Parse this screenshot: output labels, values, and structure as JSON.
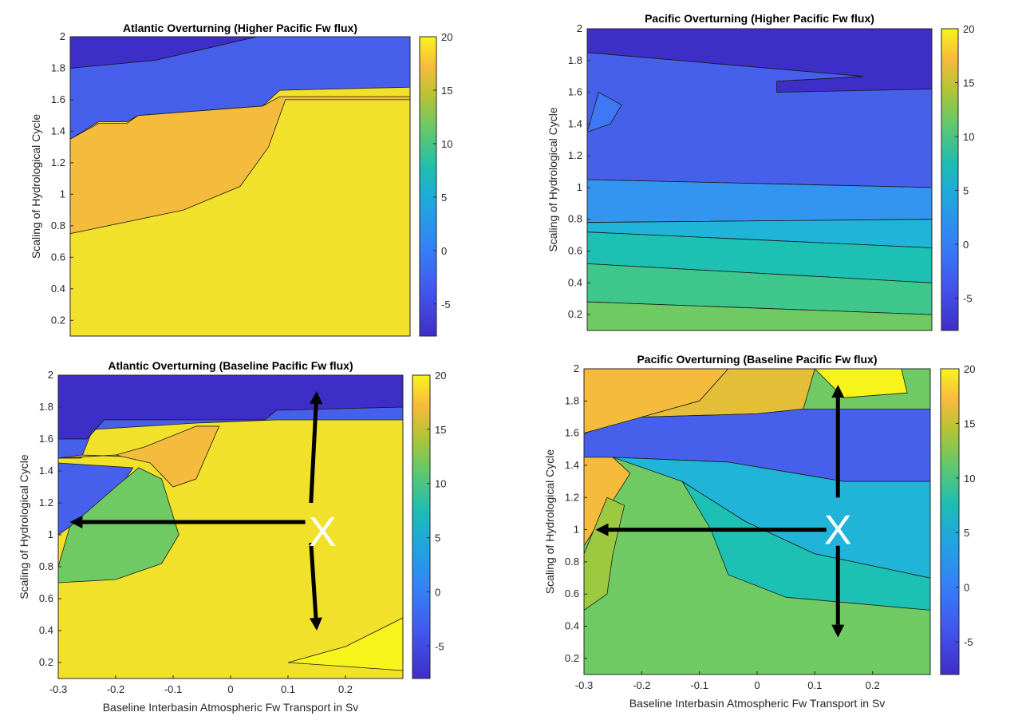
{
  "chart_data": [
    {
      "type": "contour",
      "title": "Atlantic Overturning (Higher Pacific Fw flux)",
      "xlabel": "",
      "ylabel": "Scaling of Hydrological Cycle",
      "xlim": [
        -0.3,
        0.3
      ],
      "ylim": [
        0.1,
        2.0
      ],
      "x_ticks": [],
      "y_ticks": [
        "0.2",
        "0.4",
        "0.6",
        "0.8",
        "1",
        "1.2",
        "1.4",
        "1.6",
        "1.8",
        "2"
      ],
      "colorbar": {
        "min": -8,
        "max": 20,
        "ticks": [
          "-5",
          "0",
          "5",
          "10",
          "15",
          "20"
        ]
      },
      "regions": [
        {
          "level": -7.5,
          "color": "#3e2ec8",
          "outline": [
            [
              -0.3,
              2.0
            ],
            [
              0.03,
              2.0
            ],
            [
              -0.15,
              1.85
            ],
            [
              -0.3,
              1.8
            ]
          ]
        },
        {
          "level": -5,
          "color": "#4760ec",
          "outline": [
            [
              -0.3,
              1.8
            ],
            [
              -0.15,
              1.85
            ],
            [
              0.03,
              2.0
            ],
            [
              0.3,
              2.0
            ],
            [
              0.3,
              1.68
            ],
            [
              0.07,
              1.66
            ],
            [
              0.04,
              1.56
            ],
            [
              -0.18,
              1.5
            ],
            [
              -0.2,
              1.46
            ],
            [
              -0.25,
              1.46
            ],
            [
              -0.3,
              1.35
            ]
          ]
        },
        {
          "level": 17,
          "color": "#f5bb3c",
          "outline": [
            [
              -0.3,
              1.35
            ],
            [
              -0.25,
              1.45
            ],
            [
              -0.2,
              1.45
            ],
            [
              -0.18,
              1.5
            ],
            [
              0.04,
              1.56
            ],
            [
              0.07,
              1.62
            ],
            [
              0.3,
              1.62
            ],
            [
              0.3,
              0.1
            ],
            [
              -0.3,
              0.1
            ]
          ]
        },
        {
          "level": 19.5,
          "color": "#f2e12a",
          "outline": [
            [
              -0.3,
              0.75
            ],
            [
              -0.1,
              0.9
            ],
            [
              0.0,
              1.05
            ],
            [
              0.05,
              1.3
            ],
            [
              0.08,
              1.6
            ],
            [
              0.3,
              1.6
            ],
            [
              0.3,
              0.1
            ],
            [
              -0.3,
              0.1
            ]
          ]
        }
      ]
    },
    {
      "type": "contour",
      "title": "Pacific Overturning (Higher Pacific Fw flux)",
      "xlabel": "",
      "ylabel": "Scaling of Hydrological Cycle",
      "xlim": [
        -0.3,
        0.3
      ],
      "ylim": [
        0.1,
        2.0
      ],
      "x_ticks": [],
      "y_ticks": [
        "0.2",
        "0.4",
        "0.6",
        "0.8",
        "1",
        "1.2",
        "1.4",
        "1.6",
        "1.8",
        "2"
      ],
      "colorbar": {
        "min": -8,
        "max": 20,
        "ticks": [
          "-5",
          "0",
          "5",
          "10",
          "15",
          "20"
        ]
      },
      "regions": [
        {
          "level": -7.5,
          "color": "#3e2ec8",
          "outline": [
            [
              -0.3,
              2.0
            ],
            [
              0.3,
              2.0
            ],
            [
              0.3,
              1.62
            ],
            [
              0.12,
              1.6
            ],
            [
              0.03,
              1.6
            ],
            [
              0.03,
              1.67
            ],
            [
              0.18,
              1.7
            ],
            [
              -0.3,
              1.85
            ]
          ]
        },
        {
          "level": -5,
          "color": "#4760ec",
          "outline": [
            [
              -0.3,
              1.85
            ],
            [
              0.18,
              1.7
            ],
            [
              0.03,
              1.67
            ],
            [
              0.03,
              1.6
            ],
            [
              0.3,
              1.62
            ],
            [
              0.3,
              1.0
            ],
            [
              -0.3,
              1.05
            ]
          ]
        },
        {
          "level": -3,
          "color": "#3f78f5",
          "outline": [
            [
              -0.3,
              1.35
            ],
            [
              -0.28,
              1.6
            ],
            [
              -0.24,
              1.52
            ],
            [
              -0.26,
              1.4
            ]
          ]
        },
        {
          "level": -1,
          "color": "#3495f0",
          "outline": [
            [
              -0.3,
              1.05
            ],
            [
              0.3,
              1.0
            ],
            [
              0.3,
              0.8
            ],
            [
              -0.3,
              0.78
            ]
          ]
        },
        {
          "level": 3,
          "color": "#20b4d8",
          "outline": [
            [
              -0.3,
              0.78
            ],
            [
              0.3,
              0.8
            ],
            [
              0.3,
              0.62
            ],
            [
              -0.3,
              0.72
            ]
          ]
        },
        {
          "level": 7,
          "color": "#1cc1b3",
          "outline": [
            [
              -0.3,
              0.72
            ],
            [
              0.3,
              0.62
            ],
            [
              0.3,
              0.4
            ],
            [
              -0.3,
              0.52
            ]
          ]
        },
        {
          "level": 9,
          "color": "#3ec68b",
          "outline": [
            [
              -0.3,
              0.52
            ],
            [
              0.3,
              0.4
            ],
            [
              0.3,
              0.2
            ],
            [
              -0.3,
              0.28
            ]
          ]
        },
        {
          "level": 11,
          "color": "#6fca63",
          "outline": [
            [
              -0.3,
              0.28
            ],
            [
              0.3,
              0.2
            ],
            [
              0.3,
              0.1
            ],
            [
              -0.3,
              0.1
            ]
          ]
        }
      ]
    },
    {
      "type": "contour",
      "title": "Atlantic Overturning (Baseline Pacific Fw flux)",
      "xlabel": "Baseline Interbasin Atmospheric Fw Transport in Sv",
      "ylabel": "Scaling of Hydrological Cycle",
      "xlim": [
        -0.3,
        0.3
      ],
      "ylim": [
        0.1,
        2.0
      ],
      "x_ticks": [
        -0.3,
        -0.2,
        -0.1,
        0,
        0.1,
        0.2
      ],
      "x_tick_labels": [
        "-0.3",
        "-0.2",
        "-0.1",
        "0",
        "0.1",
        "0.2"
      ],
      "y_ticks": [
        "0.2",
        "0.4",
        "0.6",
        "0.8",
        "1",
        "1.2",
        "1.4",
        "1.6",
        "1.8",
        "2"
      ],
      "colorbar": {
        "min": -8,
        "max": 20,
        "ticks": [
          "-5",
          "0",
          "5",
          "10",
          "15",
          "20"
        ]
      },
      "marker": {
        "text": "X",
        "x": 0.16,
        "y": 1.02
      },
      "arrows": [
        {
          "from": [
            0.14,
            1.2
          ],
          "to": [
            0.15,
            1.9
          ]
        },
        {
          "from": [
            0.14,
            0.95
          ],
          "to": [
            0.15,
            0.4
          ]
        },
        {
          "from": [
            0.13,
            1.08
          ],
          "to": [
            -0.28,
            1.08
          ]
        }
      ],
      "regions": [
        {
          "level": 19.5,
          "color": "#f2e12a",
          "outline": [
            [
              -0.3,
              2.0
            ],
            [
              0.3,
              2.0
            ],
            [
              0.3,
              0.1
            ],
            [
              -0.3,
              0.1
            ]
          ]
        },
        {
          "level": -7.5,
          "color": "#3e2ec8",
          "outline": [
            [
              -0.3,
              2.0
            ],
            [
              0.3,
              2.0
            ],
            [
              0.3,
              1.8
            ],
            [
              0.08,
              1.78
            ],
            [
              0.06,
              1.72
            ],
            [
              -0.22,
              1.72
            ],
            [
              -0.25,
              1.6
            ],
            [
              -0.3,
              1.6
            ]
          ]
        },
        {
          "level": -5,
          "color": "#4760ec",
          "outline": [
            [
              -0.3,
              1.6
            ],
            [
              -0.25,
              1.6
            ],
            [
              -0.22,
              1.72
            ],
            [
              0.06,
              1.72
            ],
            [
              0.08,
              1.78
            ],
            [
              0.3,
              1.8
            ],
            [
              0.3,
              1.72
            ],
            [
              0.08,
              1.72
            ],
            [
              -0.06,
              1.7
            ],
            [
              -0.24,
              1.66
            ],
            [
              -0.26,
              1.48
            ],
            [
              -0.3,
              1.48
            ]
          ]
        },
        {
          "level": 17,
          "color": "#f5bb3c",
          "outline": [
            [
              -0.3,
              1.48
            ],
            [
              -0.26,
              1.5
            ],
            [
              -0.1,
              1.48
            ],
            [
              -0.02,
              1.68
            ],
            [
              -0.06,
              1.68
            ],
            [
              -0.09,
              1.5
            ],
            [
              -0.2,
              1.5
            ],
            [
              -0.3,
              1.48
            ]
          ]
        },
        {
          "level": 17.5,
          "color": "#f5bb3c",
          "outline": [
            [
              -0.2,
              1.5
            ],
            [
              -0.15,
              1.55
            ],
            [
              -0.06,
              1.68
            ],
            [
              -0.02,
              1.68
            ],
            [
              -0.06,
              1.35
            ],
            [
              -0.1,
              1.3
            ],
            [
              -0.14,
              1.45
            ]
          ]
        },
        {
          "level": -5,
          "color": "#4760ec",
          "outline": [
            [
              -0.3,
              1.45
            ],
            [
              -0.17,
              1.42
            ],
            [
              -0.2,
              1.25
            ],
            [
              -0.3,
              1.0
            ]
          ]
        },
        {
          "level": 10,
          "color": "#6fca63",
          "outline": [
            [
              -0.3,
              0.8
            ],
            [
              -0.28,
              1.05
            ],
            [
              -0.2,
              1.3
            ],
            [
              -0.16,
              1.42
            ],
            [
              -0.12,
              1.35
            ],
            [
              -0.09,
              1.0
            ],
            [
              -0.12,
              0.82
            ],
            [
              -0.2,
              0.72
            ],
            [
              -0.3,
              0.7
            ]
          ]
        },
        {
          "level": 20,
          "color": "#f7f41c",
          "outline": [
            [
              0.3,
              0.48
            ],
            [
              0.3,
              0.15
            ],
            [
              0.1,
              0.2
            ],
            [
              0.2,
              0.3
            ]
          ]
        }
      ]
    },
    {
      "type": "contour",
      "title": "Pacific Overturning (Baseline Pacific Fw flux)",
      "xlabel": "Baseline Interbasin Atmospheric Fw Transport in Sv",
      "ylabel": "Scaling of Hydrological Cycle",
      "xlim": [
        -0.3,
        0.3
      ],
      "ylim": [
        0.1,
        2.0
      ],
      "x_ticks": [
        -0.3,
        -0.2,
        -0.1,
        0,
        0.1,
        0.2
      ],
      "x_tick_labels": [
        "-0.3",
        "-0.2",
        "-0.1",
        "0",
        "0.1",
        "0.2"
      ],
      "y_ticks": [
        "0.2",
        "0.4",
        "0.6",
        "0.8",
        "1",
        "1.2",
        "1.4",
        "1.6",
        "1.8",
        "2"
      ],
      "colorbar": {
        "min": -8,
        "max": 20,
        "ticks": [
          "-5",
          "0",
          "5",
          "10",
          "15",
          "20"
        ]
      },
      "marker": {
        "text": "X",
        "x": 0.14,
        "y": 1.0
      },
      "arrows": [
        {
          "from": [
            0.14,
            1.2
          ],
          "to": [
            0.14,
            1.9
          ]
        },
        {
          "from": [
            0.14,
            0.9
          ],
          "to": [
            0.14,
            0.33
          ]
        },
        {
          "from": [
            0.12,
            1.0
          ],
          "to": [
            -0.28,
            1.0
          ]
        }
      ],
      "regions": [
        {
          "level": 10,
          "color": "#6fca63",
          "outline": [
            [
              -0.3,
              2.0
            ],
            [
              0.3,
              2.0
            ],
            [
              0.3,
              0.1
            ],
            [
              -0.3,
              0.1
            ]
          ]
        },
        {
          "level": 16,
          "color": "#f5bb3c",
          "outline": [
            [
              -0.3,
              2.0
            ],
            [
              -0.05,
              2.0
            ],
            [
              -0.1,
              1.8
            ],
            [
              -0.2,
              1.7
            ],
            [
              -0.25,
              1.6
            ],
            [
              -0.3,
              1.6
            ]
          ]
        },
        {
          "level": 14,
          "color": "#e3be36",
          "outline": [
            [
              -0.05,
              2.0
            ],
            [
              0.1,
              2.0
            ],
            [
              0.08,
              1.75
            ],
            [
              0.0,
              1.72
            ],
            [
              -0.2,
              1.7
            ],
            [
              -0.1,
              1.8
            ]
          ]
        },
        {
          "level": 20,
          "color": "#f7f41c",
          "outline": [
            [
              0.1,
              2.0
            ],
            [
              0.25,
              2.0
            ],
            [
              0.26,
              1.85
            ],
            [
              0.15,
              1.82
            ]
          ]
        },
        {
          "level": -5,
          "color": "#4760ec",
          "outline": [
            [
              -0.3,
              1.6
            ],
            [
              -0.2,
              1.7
            ],
            [
              0.0,
              1.72
            ],
            [
              0.08,
              1.75
            ],
            [
              0.3,
              1.75
            ],
            [
              0.3,
              1.3
            ],
            [
              0.15,
              1.3
            ],
            [
              -0.05,
              1.42
            ],
            [
              -0.25,
              1.45
            ],
            [
              -0.3,
              1.45
            ]
          ]
        },
        {
          "level": 3,
          "color": "#20b4d8",
          "outline": [
            [
              -0.25,
              1.45
            ],
            [
              -0.05,
              1.42
            ],
            [
              0.15,
              1.3
            ],
            [
              0.3,
              1.3
            ],
            [
              0.3,
              0.7
            ],
            [
              0.1,
              0.85
            ],
            [
              -0.02,
              1.05
            ],
            [
              -0.13,
              1.3
            ]
          ]
        },
        {
          "level": 7,
          "color": "#1cc1b3",
          "outline": [
            [
              -0.13,
              1.3
            ],
            [
              -0.02,
              1.05
            ],
            [
              0.1,
              0.85
            ],
            [
              0.3,
              0.7
            ],
            [
              0.3,
              0.5
            ],
            [
              0.05,
              0.58
            ],
            [
              -0.05,
              0.72
            ],
            [
              -0.08,
              1.0
            ]
          ]
        },
        {
          "level": 16,
          "color": "#f5bb3c",
          "outline": [
            [
              -0.3,
              0.85
            ],
            [
              -0.3,
              1.45
            ],
            [
              -0.25,
              1.45
            ],
            [
              -0.22,
              1.35
            ],
            [
              -0.3,
              0.9
            ]
          ]
        },
        {
          "level": 12,
          "color": "#9dc940",
          "outline": [
            [
              -0.3,
              0.5
            ],
            [
              -0.3,
              0.85
            ],
            [
              -0.26,
              1.2
            ],
            [
              -0.23,
              1.15
            ],
            [
              -0.25,
              0.85
            ],
            [
              -0.26,
              0.6
            ]
          ]
        }
      ]
    }
  ]
}
